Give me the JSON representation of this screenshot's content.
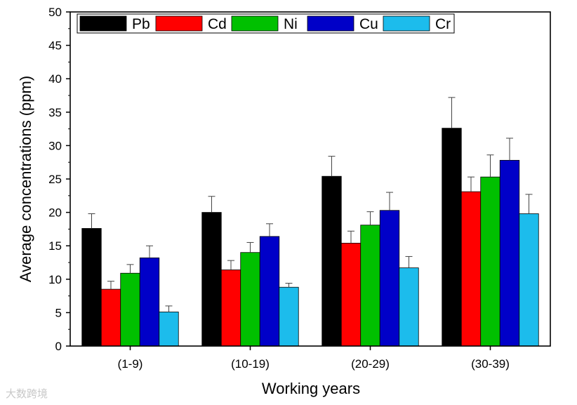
{
  "chart_data": {
    "type": "bar",
    "title": "",
    "xlabel": "Working years",
    "ylabel": "Average concentrations (ppm)",
    "ylim": [
      0,
      50
    ],
    "yticks": [
      0,
      5,
      10,
      15,
      20,
      25,
      30,
      35,
      40,
      45,
      50
    ],
    "categories": [
      "(1-9)",
      "(10-19)",
      "(20-29)",
      "(30-39)"
    ],
    "legend_position": "top",
    "series": [
      {
        "name": "Pb",
        "color": "#000000",
        "values": [
          17.6,
          20.0,
          25.4,
          32.6
        ],
        "errors": [
          2.2,
          2.4,
          3.0,
          4.6
        ]
      },
      {
        "name": "Cd",
        "color": "#ff0000",
        "values": [
          8.5,
          11.4,
          15.4,
          23.1
        ],
        "errors": [
          1.2,
          1.4,
          1.8,
          2.2
        ]
      },
      {
        "name": "Ni",
        "color": "#00c000",
        "values": [
          10.9,
          14.0,
          18.1,
          25.3
        ],
        "errors": [
          1.3,
          1.5,
          2.0,
          3.3
        ]
      },
      {
        "name": "Cu",
        "color": "#0000c8",
        "values": [
          13.2,
          16.4,
          20.3,
          27.8
        ],
        "errors": [
          1.8,
          1.9,
          2.7,
          3.3
        ]
      },
      {
        "name": "Cr",
        "color": "#1cbcec",
        "values": [
          5.1,
          8.8,
          11.7,
          19.8
        ],
        "errors": [
          0.9,
          0.6,
          1.7,
          2.9
        ]
      }
    ]
  },
  "watermark": "大数跨境"
}
